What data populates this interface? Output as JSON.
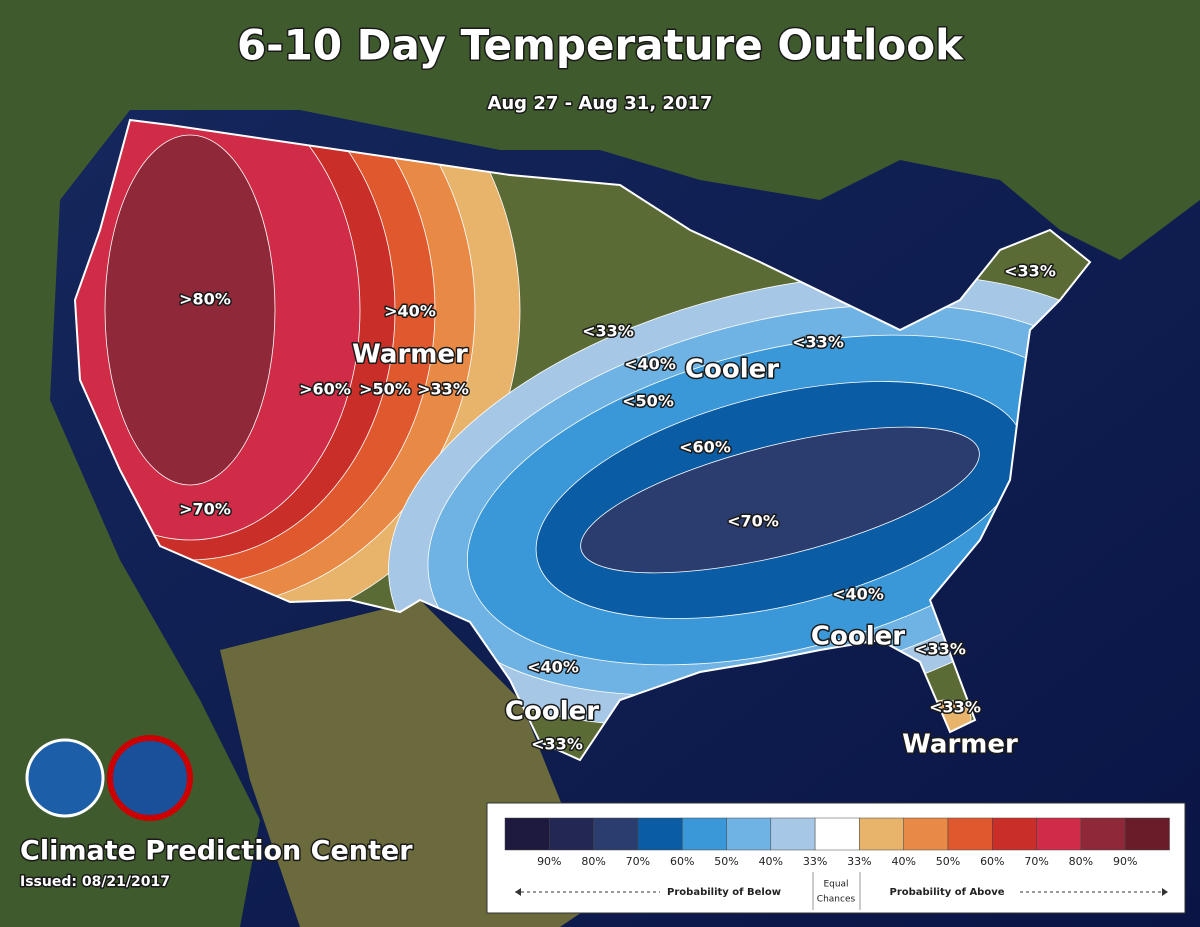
{
  "header": {
    "title": "6-10 Day Temperature Outlook",
    "date": "Aug 27 - Aug 31, 2017"
  },
  "map": {
    "labels": [
      ">80%",
      ">70%",
      ">60%",
      ">50%",
      ">33%",
      ">40%",
      "Warmer",
      "<33%",
      "<40%",
      "Cooler",
      "<33%",
      "<33%",
      "<50%",
      "<60%",
      "<70%",
      "<40%",
      "Cooler",
      "<33%",
      "<40%",
      "Cooler",
      "<33%",
      "<33%",
      "Warmer"
    ]
  },
  "legend": {
    "colors": [
      "#1e1a3f",
      "#232754",
      "#2b3c6e",
      "#0a5ca4",
      "#3a98d8",
      "#6eb3e4",
      "#a6c8e6",
      "#ffffff",
      "#e8b36a",
      "#e88a45",
      "#e0582e",
      "#c92f28",
      "#d02c48",
      "#8f2838",
      "#6a1c28"
    ],
    "ticks": [
      "90%",
      "80%",
      "70%",
      "60%",
      "50%",
      "40%",
      "33%",
      "33%",
      "40%",
      "50%",
      "60%",
      "70%",
      "80%",
      "90%"
    ],
    "below": "Probability of Below",
    "equal": [
      "Equal",
      "Chances"
    ],
    "above": "Probability of Above"
  },
  "footer": {
    "org": "Climate Prediction Center",
    "issued": "Issued: 08/21/2017"
  }
}
